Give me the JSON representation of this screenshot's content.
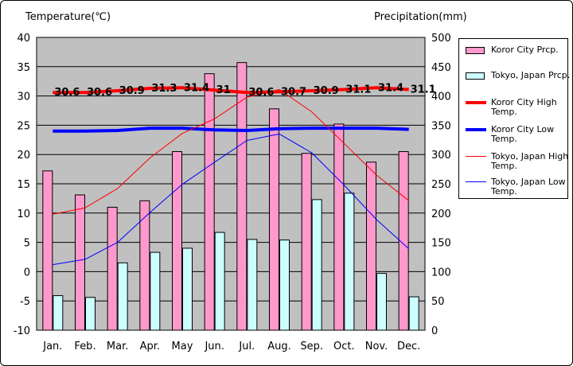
{
  "left_axis_title": "Temperature(℃)",
  "right_axis_title": "Precipitation(mm)",
  "colors": {
    "plot_bg": "#c0c0c0",
    "koror_prcp": "#ff99cc",
    "tokyo_prcp": "#ccffff",
    "koror_high": "#ff0000",
    "koror_low": "#0000ff",
    "tokyo_high": "#ff0000",
    "tokyo_low": "#0000ff"
  },
  "legend": [
    {
      "label": "Koror City Prcp."
    },
    {
      "label": "Tokyo, Japan Prcp."
    },
    {
      "label": "Koror City High Temp."
    },
    {
      "label": "Koror City Low Temp."
    },
    {
      "label": "Tokyo, Japan High Temp."
    },
    {
      "label": "Tokyo, Japan Low Temp."
    }
  ],
  "chart_data": {
    "type": "bar",
    "categories": [
      "Jan.",
      "Feb.",
      "Mar.",
      "Apr.",
      "May",
      "Jun.",
      "Jul.",
      "Aug.",
      "Sep.",
      "Oct.",
      "Nov.",
      "Dec."
    ],
    "left_axis": {
      "ylim": [
        -10,
        40
      ],
      "ticks": [
        -10,
        -5,
        0,
        5,
        10,
        15,
        20,
        25,
        30,
        35,
        40
      ]
    },
    "right_axis": {
      "ylim": [
        0,
        500
      ],
      "ticks": [
        0,
        50,
        100,
        150,
        200,
        250,
        300,
        350,
        400,
        450,
        500
      ]
    },
    "bar_series": [
      {
        "name": "Koror City Prcp.",
        "values": [
          272,
          231,
          210,
          221,
          305,
          438,
          457,
          378,
          302,
          352,
          287,
          305
        ]
      },
      {
        "name": "Tokyo, Japan Prcp.",
        "values": [
          59,
          56,
          115,
          133,
          140,
          167,
          155,
          154,
          223,
          234,
          97,
          57
        ]
      }
    ],
    "line_series": [
      {
        "name": "Koror City High Temp.",
        "values": [
          30.6,
          30.6,
          30.9,
          31.3,
          31.4,
          31,
          30.6,
          30.7,
          30.9,
          31.1,
          31.4,
          31.1
        ],
        "labels": [
          "30.6",
          "30.6",
          "30.9",
          "31.3",
          "31.4",
          "31",
          "30.6",
          "30.7",
          "30.9",
          "31.1",
          "31.4",
          "31.1"
        ]
      },
      {
        "name": "Koror City Low Temp.",
        "values": [
          24,
          24,
          24.1,
          24.5,
          24.5,
          24.2,
          24.1,
          24.4,
          24.5,
          24.5,
          24.5,
          24.3
        ]
      },
      {
        "name": "Tokyo, Japan High Temp.",
        "values": [
          9.8,
          10.9,
          14.2,
          19.4,
          23.6,
          26.1,
          29.8,
          31.1,
          27.3,
          21.9,
          16.5,
          12.1
        ]
      },
      {
        "name": "Tokyo, Japan Low Temp.",
        "values": [
          1.2,
          2.1,
          5,
          10.1,
          14.9,
          18.7,
          22.4,
          23.5,
          20.3,
          14.8,
          8.9,
          3.9
        ]
      }
    ]
  }
}
